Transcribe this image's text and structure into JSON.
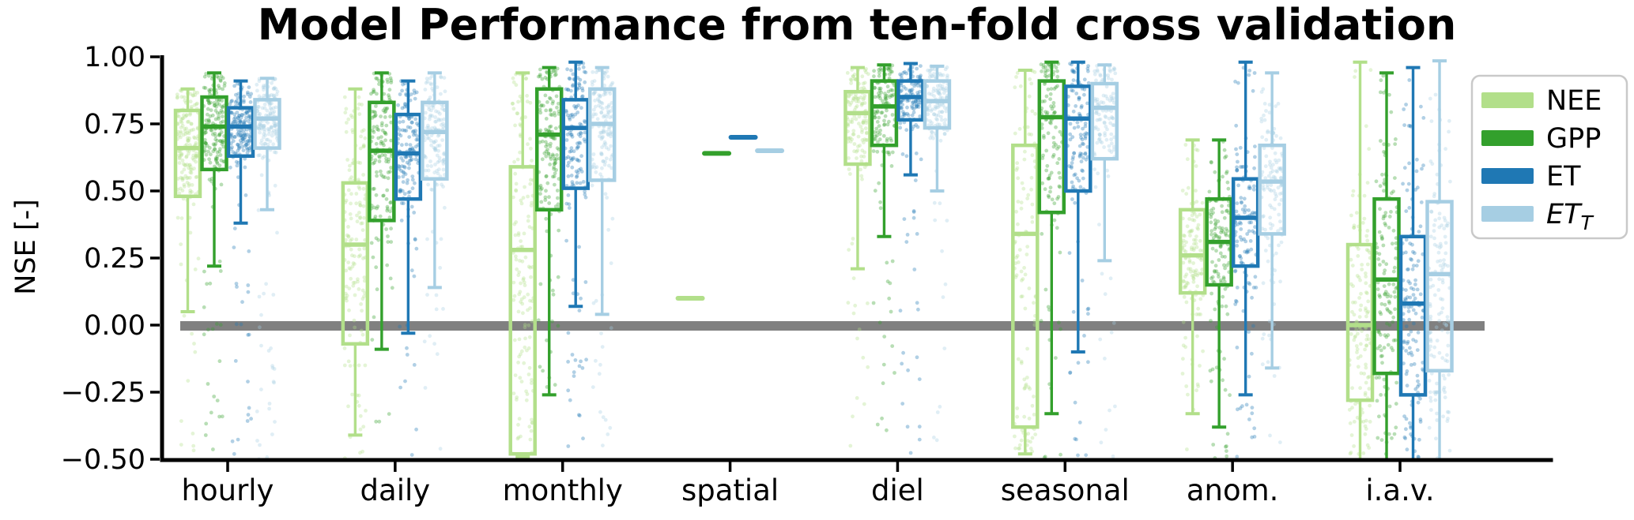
{
  "figure": {
    "title": "Model Performance from ten-fold cross validation",
    "y_axis": {
      "label": "NSE [-]",
      "tick_labels": [
        "1.00",
        "0.75",
        "0.50",
        "0.25",
        "0.00",
        "−0.25",
        "−0.50"
      ],
      "tick_values": [
        1.0,
        0.75,
        0.5,
        0.25,
        0.0,
        -0.25,
        -0.5
      ],
      "range": [
        -0.5,
        1.0
      ]
    },
    "x_axis": {
      "categories": [
        "hourly",
        "daily",
        "monthly",
        "spatial",
        "diel",
        "seasonal",
        "anom.",
        "i.a.v."
      ]
    },
    "zero_line": {
      "value": 0.0,
      "color": "#808080"
    },
    "legend": {
      "items": [
        {
          "label": "NEE",
          "color": "#b2df8a",
          "italic": false
        },
        {
          "label": "GPP",
          "color": "#33a02c",
          "italic": false
        },
        {
          "label": "ET",
          "color": "#1f78b4",
          "italic": false
        },
        {
          "label": "ET",
          "subscript": "T",
          "color": "#a6cee3",
          "italic": true
        }
      ]
    }
  },
  "chart_data": {
    "type": "boxplot",
    "title": "Model Performance from ten-fold cross validation",
    "xlabel": "",
    "ylabel": "NSE [-]",
    "ylim": [
      -0.5,
      1.0
    ],
    "grid": false,
    "legend_position": "upper right",
    "categories": [
      "hourly",
      "daily",
      "monthly",
      "spatial",
      "diel",
      "seasonal",
      "anom.",
      "i.a.v."
    ],
    "jitter_point_counts": [
      180,
      150,
      150,
      0,
      140,
      120,
      130,
      140
    ],
    "series": [
      {
        "name": "NEE",
        "color": "#b2df8a",
        "boxes": [
          {
            "whisker_low": 0.05,
            "q1": 0.48,
            "median": 0.66,
            "q3": 0.8,
            "whisker_high": 0.88
          },
          {
            "whisker_low": -0.41,
            "q1": -0.07,
            "median": 0.3,
            "q3": 0.53,
            "whisker_high": 0.88
          },
          {
            "whisker_low": -0.49,
            "q1": -0.48,
            "median": 0.28,
            "q3": 0.59,
            "whisker_high": 0.94
          },
          {
            "flat": true,
            "median": 0.1
          },
          {
            "whisker_low": 0.21,
            "q1": 0.6,
            "median": 0.79,
            "q3": 0.87,
            "whisker_high": 0.96
          },
          {
            "whisker_low": -0.48,
            "q1": -0.38,
            "median": 0.34,
            "q3": 0.67,
            "whisker_high": 0.95
          },
          {
            "whisker_low": -0.33,
            "q1": 0.12,
            "median": 0.26,
            "q3": 0.43,
            "whisker_high": 0.69
          },
          {
            "whisker_low": -0.55,
            "clipped_low": true,
            "q1": -0.28,
            "median": 0.0,
            "q3": 0.3,
            "whisker_high": 0.98
          }
        ]
      },
      {
        "name": "GPP",
        "color": "#33a02c",
        "boxes": [
          {
            "whisker_low": 0.22,
            "q1": 0.58,
            "median": 0.74,
            "q3": 0.85,
            "whisker_high": 0.94
          },
          {
            "whisker_low": -0.09,
            "q1": 0.39,
            "median": 0.65,
            "q3": 0.83,
            "whisker_high": 0.94
          },
          {
            "whisker_low": -0.26,
            "q1": 0.43,
            "median": 0.71,
            "q3": 0.88,
            "whisker_high": 0.96
          },
          {
            "flat": true,
            "median": 0.64
          },
          {
            "whisker_low": 0.33,
            "q1": 0.67,
            "median": 0.815,
            "q3": 0.91,
            "whisker_high": 0.97
          },
          {
            "whisker_low": -0.33,
            "q1": 0.42,
            "median": 0.775,
            "q3": 0.91,
            "whisker_high": 0.98
          },
          {
            "whisker_low": -0.38,
            "q1": 0.15,
            "median": 0.31,
            "q3": 0.47,
            "whisker_high": 0.69
          },
          {
            "whisker_low": -0.55,
            "clipped_low": true,
            "q1": -0.18,
            "median": 0.17,
            "q3": 0.47,
            "whisker_high": 0.94
          }
        ]
      },
      {
        "name": "ET",
        "color": "#1f78b4",
        "boxes": [
          {
            "whisker_low": 0.38,
            "q1": 0.63,
            "median": 0.74,
            "q3": 0.81,
            "whisker_high": 0.91
          },
          {
            "whisker_low": -0.03,
            "q1": 0.47,
            "median": 0.64,
            "q3": 0.785,
            "whisker_high": 0.91
          },
          {
            "whisker_low": 0.07,
            "q1": 0.51,
            "median": 0.735,
            "q3": 0.84,
            "whisker_high": 0.98
          },
          {
            "flat": true,
            "median": 0.7
          },
          {
            "whisker_low": 0.56,
            "q1": 0.765,
            "median": 0.85,
            "q3": 0.91,
            "whisker_high": 0.975
          },
          {
            "whisker_low": -0.1,
            "q1": 0.5,
            "median": 0.77,
            "q3": 0.89,
            "whisker_high": 0.98
          },
          {
            "whisker_low": -0.26,
            "q1": 0.22,
            "median": 0.4,
            "q3": 0.545,
            "whisker_high": 0.98
          },
          {
            "whisker_low": -0.55,
            "clipped_low": true,
            "q1": -0.26,
            "median": 0.08,
            "q3": 0.33,
            "whisker_high": 0.96
          }
        ]
      },
      {
        "name": "ET_T",
        "color": "#a6cee3",
        "boxes": [
          {
            "whisker_low": 0.43,
            "q1": 0.66,
            "median": 0.77,
            "q3": 0.84,
            "whisker_high": 0.92
          },
          {
            "whisker_low": 0.14,
            "q1": 0.545,
            "median": 0.72,
            "q3": 0.83,
            "whisker_high": 0.94
          },
          {
            "whisker_low": 0.04,
            "q1": 0.54,
            "median": 0.75,
            "q3": 0.88,
            "whisker_high": 0.96
          },
          {
            "flat": true,
            "median": 0.65
          },
          {
            "whisker_low": 0.5,
            "q1": 0.735,
            "median": 0.835,
            "q3": 0.91,
            "whisker_high": 0.965
          },
          {
            "whisker_low": 0.24,
            "q1": 0.62,
            "median": 0.81,
            "q3": 0.9,
            "whisker_high": 0.97
          },
          {
            "whisker_low": -0.16,
            "q1": 0.34,
            "median": 0.535,
            "q3": 0.67,
            "whisker_high": 0.94
          },
          {
            "whisker_low": -0.55,
            "clipped_low": true,
            "q1": -0.17,
            "median": 0.19,
            "q3": 0.46,
            "whisker_high": 0.985
          }
        ]
      }
    ]
  }
}
